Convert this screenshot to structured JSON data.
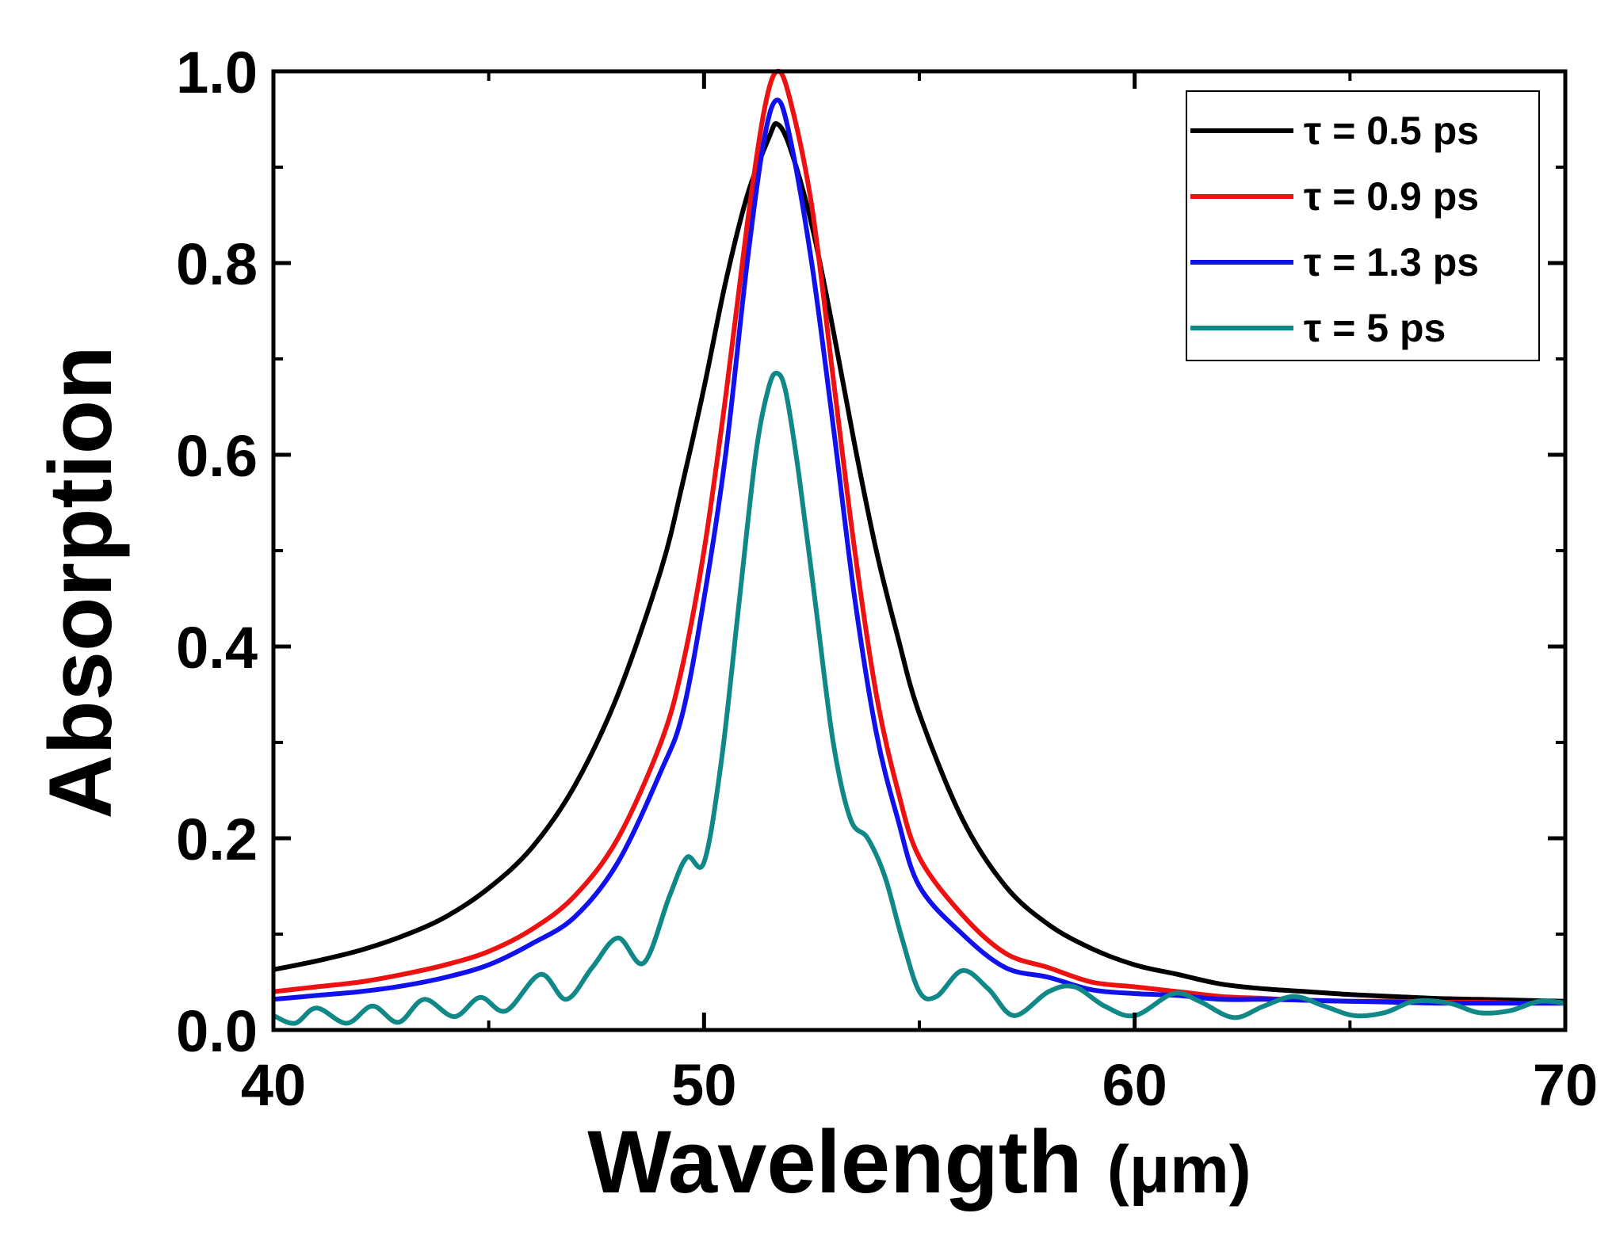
{
  "chart_data": {
    "type": "line",
    "title": "",
    "xlabel": "Wavelength",
    "xlabel_unit": "(μm)",
    "ylabel": "Absorption",
    "xlim": [
      40,
      70
    ],
    "ylim": [
      0,
      1.0
    ],
    "x_ticks": [
      40,
      50,
      60,
      70
    ],
    "x_tick_labels": [
      "40",
      "50",
      "60",
      "70"
    ],
    "y_ticks": [
      0.0,
      0.2,
      0.4,
      0.6,
      0.8,
      1.0
    ],
    "y_tick_labels": [
      "0.0",
      "0.2",
      "0.4",
      "0.6",
      "0.8",
      "1.0"
    ],
    "grid": false,
    "legend_position": "top-right",
    "series": [
      {
        "name": "τ = 0.5 ps",
        "color": "#000000",
        "x": [
          40,
          41,
          42,
          43,
          44,
          45,
          46,
          47,
          48,
          49,
          49.5,
          50,
          50.5,
          51,
          51.5,
          51.7,
          52,
          52.5,
          53,
          53.5,
          54,
          54.5,
          55,
          56,
          57,
          58,
          59,
          60,
          61,
          62,
          63,
          64,
          65,
          66,
          67,
          68,
          69,
          70
        ],
        "y": [
          0.063,
          0.072,
          0.083,
          0.098,
          0.118,
          0.148,
          0.19,
          0.255,
          0.35,
          0.48,
          0.57,
          0.67,
          0.78,
          0.87,
          0.93,
          0.945,
          0.92,
          0.84,
          0.73,
          0.61,
          0.5,
          0.41,
          0.33,
          0.22,
          0.15,
          0.11,
          0.085,
          0.068,
          0.058,
          0.048,
          0.043,
          0.04,
          0.037,
          0.035,
          0.033,
          0.032,
          0.031,
          0.03
        ]
      },
      {
        "name": "τ = 0.9 ps",
        "color": "#ee1111",
        "x": [
          40,
          41,
          42,
          43,
          44,
          45,
          46,
          47,
          48,
          49,
          49.5,
          50,
          50.5,
          51,
          51.4,
          51.7,
          52,
          52.5,
          53,
          53.5,
          54,
          54.5,
          55,
          56,
          57,
          58,
          59,
          60,
          61,
          62,
          63,
          64,
          65,
          66,
          67,
          68,
          69,
          70
        ],
        "y": [
          0.04,
          0.045,
          0.05,
          0.058,
          0.068,
          0.082,
          0.105,
          0.14,
          0.2,
          0.3,
          0.38,
          0.5,
          0.66,
          0.84,
          0.96,
          1.0,
          0.97,
          0.86,
          0.68,
          0.5,
          0.35,
          0.25,
          0.18,
          0.12,
          0.08,
          0.065,
          0.05,
          0.045,
          0.04,
          0.035,
          0.033,
          0.031,
          0.03,
          0.03,
          0.029,
          0.029,
          0.028,
          0.028
        ]
      },
      {
        "name": "τ = 1.3 ps",
        "color": "#1111ee",
        "x": [
          40,
          41,
          42,
          43,
          44,
          45,
          46,
          47,
          48,
          49,
          49.5,
          50,
          50.5,
          51,
          51.4,
          51.7,
          52,
          52.5,
          53,
          53.5,
          54,
          54.5,
          55,
          56,
          57,
          58,
          59,
          60,
          61,
          62,
          63,
          64,
          65,
          66,
          67,
          68,
          69,
          70
        ],
        "y": [
          0.032,
          0.036,
          0.04,
          0.046,
          0.055,
          0.068,
          0.09,
          0.118,
          0.175,
          0.27,
          0.33,
          0.45,
          0.6,
          0.8,
          0.93,
          0.97,
          0.93,
          0.8,
          0.63,
          0.45,
          0.31,
          0.22,
          0.15,
          0.1,
          0.065,
          0.055,
          0.042,
          0.038,
          0.036,
          0.032,
          0.032,
          0.031,
          0.03,
          0.029,
          0.028,
          0.028,
          0.028,
          0.028
        ]
      },
      {
        "name": "τ = 5 ps",
        "color": "#118888",
        "x": [
          40,
          40.5,
          41,
          41.7,
          42.3,
          42.9,
          43.5,
          44.2,
          44.8,
          45.4,
          46.2,
          46.8,
          47.4,
          48,
          48.6,
          49.2,
          49.6,
          50,
          50.4,
          50.8,
          51.2,
          51.5,
          51.7,
          51.9,
          52.2,
          52.6,
          53,
          53.4,
          53.8,
          54.2,
          54.6,
          55,
          55.4,
          56,
          56.6,
          57.2,
          58,
          58.6,
          59.3,
          60,
          60.9,
          61.5,
          62.3,
          63,
          63.7,
          64.4,
          65.1,
          65.8,
          66.5,
          67.3,
          68,
          68.7,
          69.4,
          70
        ],
        "y": [
          0.015,
          0.007,
          0.023,
          0.007,
          0.025,
          0.008,
          0.032,
          0.014,
          0.034,
          0.02,
          0.058,
          0.032,
          0.065,
          0.096,
          0.07,
          0.14,
          0.18,
          0.175,
          0.28,
          0.44,
          0.6,
          0.67,
          0.685,
          0.665,
          0.58,
          0.44,
          0.3,
          0.22,
          0.2,
          0.16,
          0.095,
          0.04,
          0.035,
          0.062,
          0.043,
          0.015,
          0.04,
          0.045,
          0.025,
          0.015,
          0.038,
          0.03,
          0.013,
          0.025,
          0.035,
          0.025,
          0.015,
          0.018,
          0.03,
          0.028,
          0.018,
          0.02,
          0.03,
          0.028
        ]
      }
    ]
  }
}
